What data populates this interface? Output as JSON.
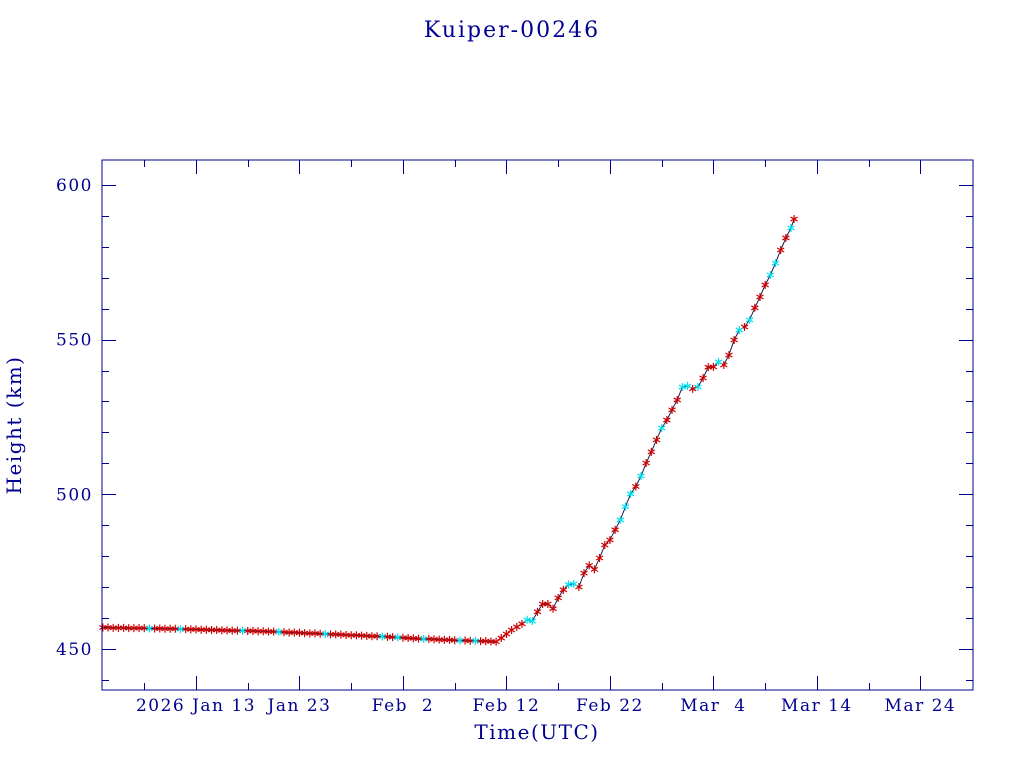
{
  "colors": {
    "background": "#ffffff",
    "axes": "#000090",
    "text": "#000090",
    "line": "#1e1e50"
  },
  "chart_data": {
    "type": "line",
    "title": "Kuiper-00246",
    "xlabel": "Time(UTC)",
    "ylabel": "Height (km)",
    "xlim": [
      "2026-01-03 22:00",
      "2026-03-29 02:00"
    ],
    "ylim": [
      436.7,
      608.1
    ],
    "grid": false,
    "x_ticks": [
      "2026-01-13",
      "2026-01-23",
      "2026-02-02",
      "2026-02-12",
      "2026-02-22",
      "2026-03-04",
      "2026-03-14",
      "2026-03-24"
    ],
    "x_tick_labels": [
      "2026 Jan 13",
      "Jan 23",
      "Feb  2",
      "Feb 12",
      "Feb 22",
      "Mar  4",
      "Mar 14",
      "Mar 24"
    ],
    "x_minor_ticks": [
      "2026-01-08",
      "2026-01-18",
      "2026-01-28",
      "2026-02-07",
      "2026-02-17",
      "2026-02-27",
      "2026-03-09",
      "2026-03-19"
    ],
    "y_ticks": [
      450,
      500,
      550,
      600
    ],
    "y_tick_labels": [
      "450",
      "500",
      "550",
      "600"
    ],
    "y_minor_ticks": [
      440,
      460,
      470,
      480,
      490,
      510,
      520,
      530,
      540,
      560,
      570,
      580,
      590
    ],
    "series": [
      {
        "color": "#d00000",
        "marker": "asterisk",
        "x": [
          "2026-01-04 00:00",
          "2026-01-04 12:00",
          "2026-01-05 00:00",
          "2026-01-05 12:00",
          "2026-01-06 00:00",
          "2026-01-06 12:00",
          "2026-01-07 00:00",
          "2026-01-07 12:00",
          "2026-01-08 00:00",
          "2026-01-09 00:00",
          "2026-01-09 12:00",
          "2026-01-10 00:00",
          "2026-01-10 12:00",
          "2026-01-11 00:00",
          "2026-01-12 00:00",
          "2026-01-12 12:00",
          "2026-01-13 00:00",
          "2026-01-13 12:00",
          "2026-01-14 00:00",
          "2026-01-14 12:00",
          "2026-01-15 00:00",
          "2026-01-15 12:00",
          "2026-01-16 00:00",
          "2026-01-16 12:00",
          "2026-01-17 00:00",
          "2026-01-18 00:00",
          "2026-01-18 12:00",
          "2026-01-19 00:00",
          "2026-01-19 12:00",
          "2026-01-20 00:00",
          "2026-01-20 12:00",
          "2026-01-21 12:00",
          "2026-01-22 00:00",
          "2026-01-22 12:00",
          "2026-01-23 00:00",
          "2026-01-23 12:00",
          "2026-01-24 00:00",
          "2026-01-24 12:00",
          "2026-01-25 00:00",
          "2026-01-26 00:00",
          "2026-01-26 12:00",
          "2026-01-27 00:00",
          "2026-01-27 12:00",
          "2026-01-28 00:00",
          "2026-01-28 12:00",
          "2026-01-29 00:00",
          "2026-01-29 12:00",
          "2026-01-30 00:00",
          "2026-01-30 12:00",
          "2026-01-31 12:00",
          "2026-02-01 00:00",
          "2026-02-02 00:00",
          "2026-02-02 12:00",
          "2026-02-03 00:00",
          "2026-02-03 12:00",
          "2026-02-04 12:00",
          "2026-02-05 00:00",
          "2026-02-05 12:00",
          "2026-02-06 00:00",
          "2026-02-06 12:00",
          "2026-02-07 00:00",
          "2026-02-08 00:00",
          "2026-02-08 12:00",
          "2026-02-09 12:00",
          "2026-02-10 00:00",
          "2026-02-10 12:00",
          "2026-02-11 00:00",
          "2026-02-11 12:00",
          "2026-02-12 00:00",
          "2026-02-12 12:00",
          "2026-02-13 00:00",
          "2026-02-13 12:00",
          "2026-02-15 00:00",
          "2026-02-15 12:00",
          "2026-02-16 00:00",
          "2026-02-16 12:00",
          "2026-02-17 00:00",
          "2026-02-17 12:00",
          "2026-02-19 00:00",
          "2026-02-19 12:00",
          "2026-02-20 00:00",
          "2026-02-20 12:00",
          "2026-02-21 00:00",
          "2026-02-21 12:00",
          "2026-02-22 00:00",
          "2026-02-22 12:00",
          "2026-02-24 12:00",
          "2026-02-25 12:00",
          "2026-02-26 00:00",
          "2026-02-26 12:00",
          "2026-02-27 12:00",
          "2026-02-28 00:00",
          "2026-02-28 12:00",
          "2026-03-02 00:00",
          "2026-03-03 00:00",
          "2026-03-03 12:00",
          "2026-03-04 00:00",
          "2026-03-05 00:00",
          "2026-03-05 12:00",
          "2026-03-06 00:00",
          "2026-03-07 00:00",
          "2026-03-08 00:00",
          "2026-03-08 12:00",
          "2026-03-09 00:00",
          "2026-03-10 12:00",
          "2026-03-11 00:00",
          "2026-03-11 19:00"
        ],
        "y": [
          456.9,
          456.9,
          456.8,
          456.8,
          456.8,
          456.7,
          456.7,
          456.7,
          456.7,
          456.6,
          456.6,
          456.5,
          456.5,
          456.5,
          456.4,
          456.3,
          456.3,
          456.2,
          456.2,
          456.1,
          456.1,
          456.0,
          456.0,
          455.9,
          455.9,
          455.8,
          455.8,
          455.7,
          455.7,
          455.6,
          455.6,
          455.4,
          455.3,
          455.3,
          455.2,
          455.1,
          455.0,
          455.0,
          454.9,
          454.7,
          454.7,
          454.6,
          454.5,
          454.4,
          454.4,
          454.3,
          454.2,
          454.1,
          454.1,
          453.9,
          453.8,
          453.6,
          453.5,
          453.4,
          453.3,
          453.2,
          453.1,
          453.0,
          452.9,
          452.9,
          452.8,
          452.7,
          452.6,
          452.5,
          452.5,
          452.4,
          452.3,
          453.5,
          454.8,
          456.1,
          457.1,
          458.1,
          462.0,
          464.5,
          464.5,
          463.0,
          466.5,
          469.1,
          470.0,
          474.5,
          477.0,
          475.7,
          479.4,
          483.6,
          485.2,
          488.5,
          502.5,
          510.1,
          513.7,
          517.6,
          524.0,
          527.3,
          530.5,
          534.1,
          537.6,
          541.1,
          541.2,
          541.8,
          545.0,
          549.9,
          554.1,
          560.3,
          563.8,
          567.7,
          579.0,
          582.9,
          589.0
        ]
      },
      {
        "color": "#00e0ee",
        "marker": "asterisk",
        "x": [
          "2026-01-08 12:00",
          "2026-01-11 12:00",
          "2026-01-17 12:00",
          "2026-01-21 00:00",
          "2026-01-25 12:00",
          "2026-01-31 00:00",
          "2026-02-01 12:00",
          "2026-02-04 00:00",
          "2026-02-07 12:00",
          "2026-02-09 00:00",
          "2026-02-14 00:00",
          "2026-02-14 12:00",
          "2026-02-18 00:00",
          "2026-02-18 12:00",
          "2026-02-23 00:00",
          "2026-02-23 12:00",
          "2026-02-24 00:00",
          "2026-02-25 00:00",
          "2026-02-27 00:00",
          "2026-03-01 00:00",
          "2026-03-01 12:00",
          "2026-03-02 12:00",
          "2026-03-04 12:00",
          "2026-03-06 12:00",
          "2026-03-07 12:00",
          "2026-03-09 12:00",
          "2026-03-10 00:00",
          "2026-03-11 12:00"
        ],
        "y": [
          456.6,
          456.4,
          455.9,
          455.5,
          454.8,
          454.0,
          453.7,
          453.2,
          452.7,
          452.6,
          459.4,
          459.0,
          470.8,
          471.0,
          491.7,
          496.0,
          500.1,
          505.9,
          521.4,
          534.7,
          535.0,
          534.7,
          542.8,
          553.1,
          556.4,
          570.9,
          574.8,
          586.1
        ]
      }
    ]
  }
}
